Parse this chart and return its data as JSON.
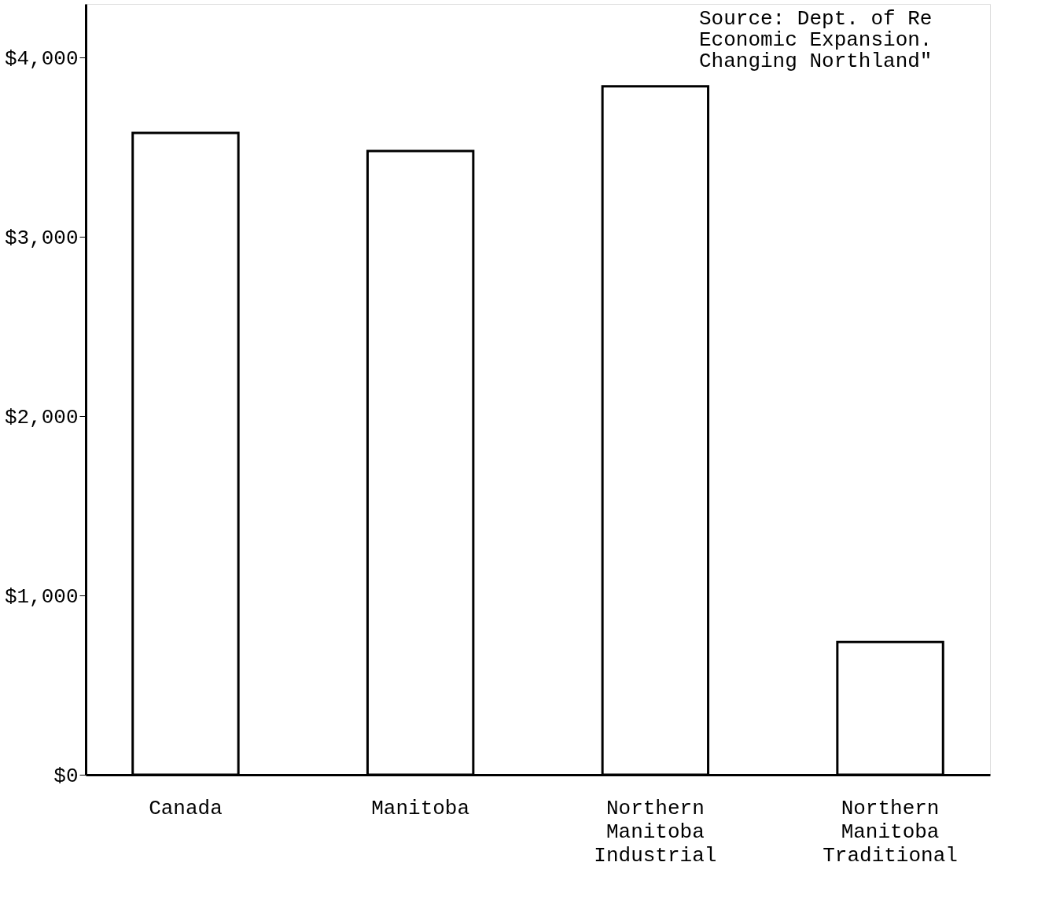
{
  "chart_data": {
    "type": "bar",
    "categories": [
      "Canada",
      "Manitoba",
      "Northern Manitoba Industrial",
      "Northern Manitoba Traditional"
    ],
    "values": [
      3580,
      3480,
      3840,
      740
    ],
    "color": "#ffffff",
    "ylim": [
      0,
      4300
    ],
    "yticks": [
      {
        "value": 0,
        "label": "$0"
      },
      {
        "value": 1000,
        "label": "$1,000"
      },
      {
        "value": 2000,
        "label": "$2,000"
      },
      {
        "value": 3000,
        "label": "$3,000"
      },
      {
        "value": 4000,
        "label": "$4,000"
      }
    ],
    "grid": false,
    "annotations": [
      "Source:  Dept. of Re\nEconomic Expansion.\nChanging Northland\""
    ]
  }
}
